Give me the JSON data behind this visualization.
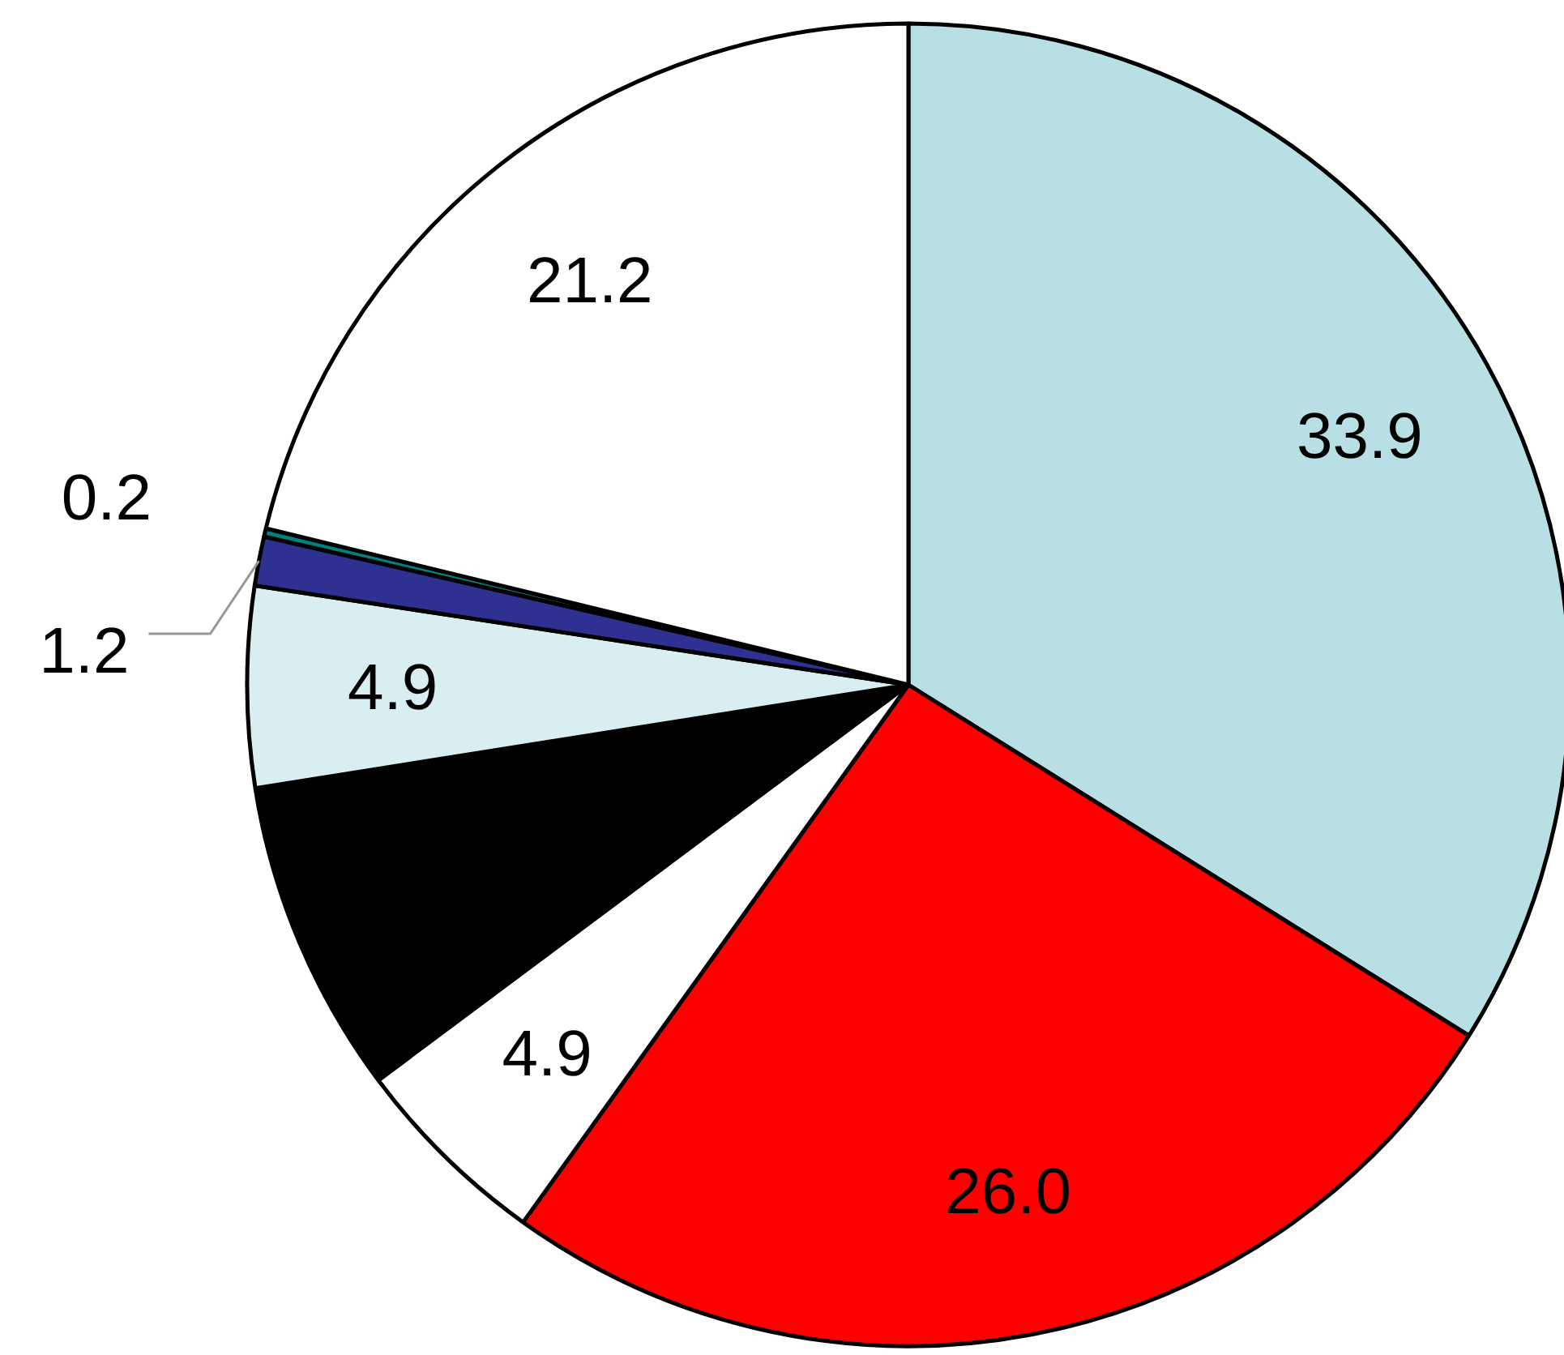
{
  "chart_data": {
    "type": "pie",
    "categories": [
      null,
      null,
      null,
      null,
      null,
      null,
      null,
      null
    ],
    "values": [
      33.9,
      26.0,
      4.9,
      7.7,
      4.9,
      1.2,
      0.2,
      21.2
    ],
    "colors": [
      "#b8dfe3",
      "#ff0000",
      "#ffffff",
      "#000000",
      "#d9eef0",
      "#2e3192",
      "#008080",
      "#ffffff"
    ],
    "value_labels": [
      "33.9",
      "26.0",
      "4.9",
      null,
      "4.9",
      "1.2",
      "0.2",
      "21.2"
    ]
  }
}
